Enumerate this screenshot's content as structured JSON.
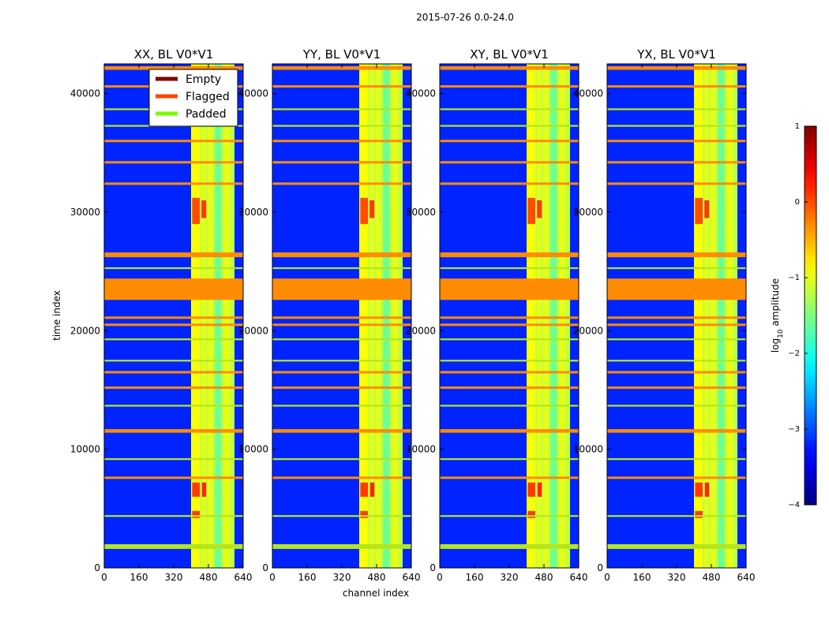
{
  "chart_data": {
    "type": "heatmap",
    "suptitle": "2015-07-26 0.0-24.0",
    "xlabel": "channel index",
    "ylabel": "time index",
    "xlim": [
      0,
      640
    ],
    "ylim": [
      0,
      42500
    ],
    "x_ticks": [
      0,
      160,
      320,
      480,
      640
    ],
    "y_ticks": [
      0,
      10000,
      20000,
      30000,
      40000
    ],
    "panels": [
      {
        "title": "XX, BL V0*V1"
      },
      {
        "title": "YY, BL V0*V1"
      },
      {
        "title": "XY, BL V0*V1"
      },
      {
        "title": "YX, BL V0*V1"
      }
    ],
    "legend": {
      "position": "top-right of first panel",
      "entries": [
        {
          "label": "Empty",
          "color": "#7f0000"
        },
        {
          "label": "Flagged",
          "color": "#ff4500"
        },
        {
          "label": "Padded",
          "color": "#7cfc00"
        }
      ]
    },
    "colorbar": {
      "label": "log",
      "label_sub": "10",
      "label_suffix": " amplitude",
      "range": [
        -4,
        1
      ],
      "ticks": [
        1,
        0,
        -1,
        -2,
        -3,
        -4
      ],
      "tick_labels": [
        "1",
        "0",
        "−1",
        "−2",
        "−3",
        "−4"
      ]
    },
    "background_level": -3.2,
    "bright_channel_band": [
      400,
      600
    ],
    "bright_channel_level": -1.2,
    "bright_stripes": [
      {
        "x0": 400,
        "x1": 440,
        "level": -0.9
      },
      {
        "x0": 448,
        "x1": 468,
        "level": -1.0
      },
      {
        "x0": 476,
        "x1": 500,
        "level": -1.0
      },
      {
        "x0": 510,
        "x1": 540,
        "level": -1.6
      },
      {
        "x0": 548,
        "x1": 580,
        "level": -1.0
      }
    ],
    "hot_spots": [
      {
        "x0": 405,
        "x1": 440,
        "t0": 4200,
        "t1": 4800,
        "level": 0.1
      },
      {
        "x0": 405,
        "x1": 440,
        "t0": 6000,
        "t1": 7200,
        "level": 0.1
      },
      {
        "x0": 450,
        "x1": 470,
        "t0": 6000,
        "t1": 7200,
        "level": 0.2
      },
      {
        "x0": 405,
        "x1": 440,
        "t0": 29000,
        "t1": 31200,
        "level": 0.0
      },
      {
        "x0": 448,
        "x1": 470,
        "t0": 29500,
        "t1": 31000,
        "level": 0.1
      }
    ],
    "flagged_rows": [
      {
        "t0": 22600,
        "t1": 24400,
        "type": "flagged"
      },
      {
        "t0": 1600,
        "t1": 2000,
        "type": "padded"
      },
      {
        "t0": 26200,
        "t1": 26600,
        "type": "flagged"
      },
      {
        "t0": 11400,
        "t1": 11700,
        "type": "flagged"
      },
      {
        "t0": 34100,
        "t1": 34300,
        "type": "flagged"
      },
      {
        "t0": 32300,
        "t1": 32500,
        "type": "flagged"
      },
      {
        "t0": 20400,
        "t1": 20600,
        "type": "flagged"
      },
      {
        "t0": 21000,
        "t1": 21200,
        "type": "flagged"
      },
      {
        "t0": 15100,
        "t1": 15300,
        "type": "flagged"
      },
      {
        "t0": 16400,
        "t1": 16600,
        "type": "flagged"
      },
      {
        "t0": 7500,
        "t1": 7700,
        "type": "flagged"
      },
      {
        "t0": 35900,
        "t1": 36100,
        "type": "flagged"
      },
      {
        "t0": 40500,
        "t1": 40700,
        "type": "flagged"
      },
      {
        "t0": 42000,
        "t1": 42300,
        "type": "flagged"
      },
      {
        "t0": 19200,
        "t1": 19350,
        "type": "padded"
      },
      {
        "t0": 13600,
        "t1": 13750,
        "type": "padded"
      },
      {
        "t0": 38600,
        "t1": 38750,
        "type": "padded"
      },
      {
        "t0": 9100,
        "t1": 9250,
        "type": "padded"
      },
      {
        "t0": 4300,
        "t1": 4450,
        "type": "padded"
      },
      {
        "t0": 25200,
        "t1": 25350,
        "type": "padded"
      },
      {
        "t0": 17400,
        "t1": 17550,
        "type": "padded"
      },
      {
        "t0": 37200,
        "t1": 37350,
        "type": "padded"
      }
    ]
  }
}
